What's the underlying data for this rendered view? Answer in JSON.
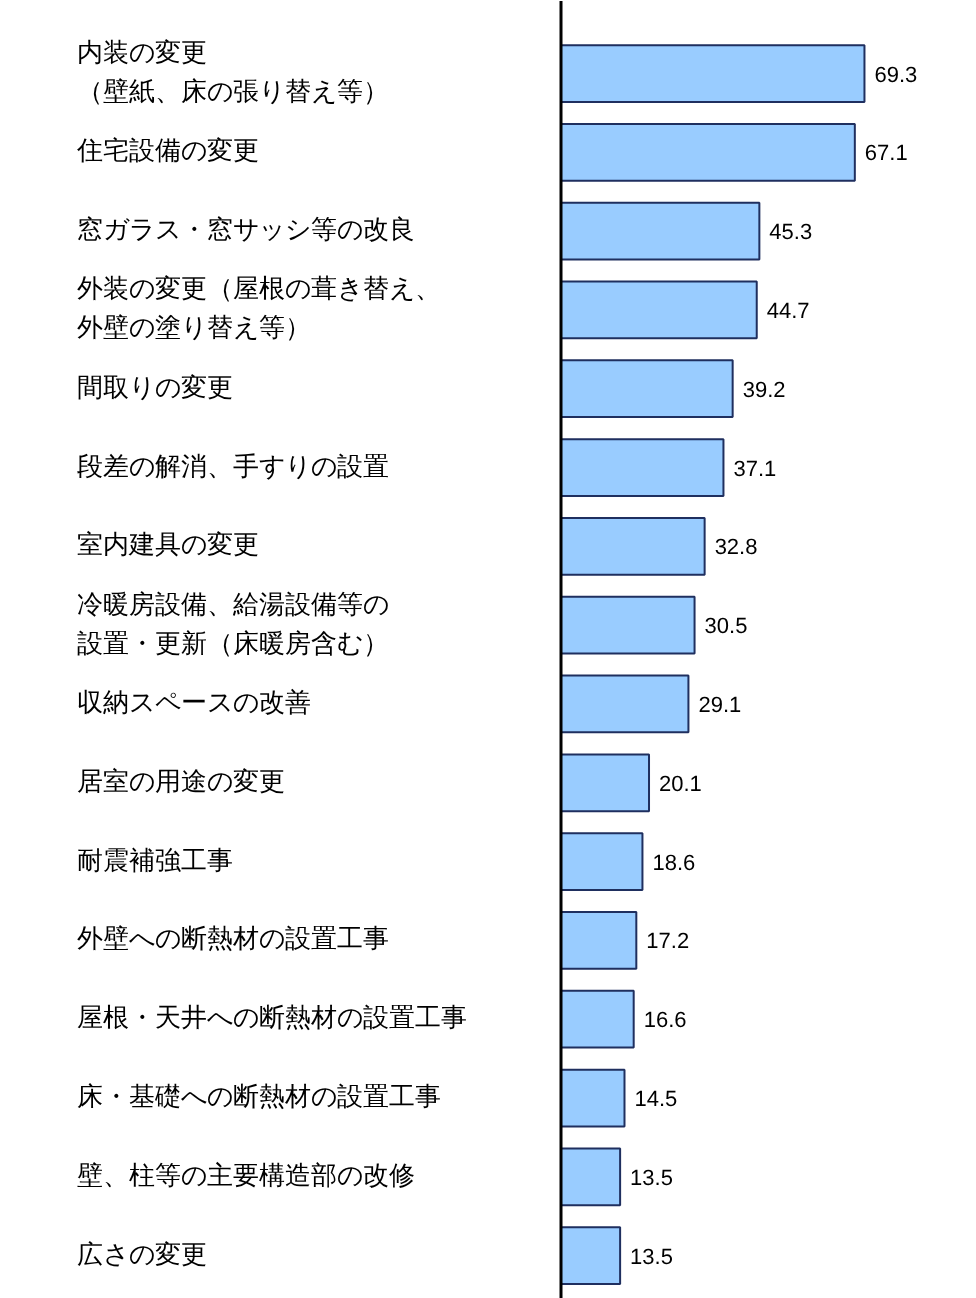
{
  "chart_data": {
    "type": "bar",
    "orientation": "horizontal",
    "xlim": [
      0,
      95
    ],
    "data_labels": true,
    "color": "#99ccff",
    "categories": [
      "内装の変更（壁紙、床の張り替え等）",
      "住宅設備の変更",
      "窓ガラス・窓サッシ等の改良",
      "外装の変更（屋根の葺き替え、外壁の塗り替え等）",
      "間取りの変更",
      "段差の解消、手すりの設置",
      "室内建具の変更",
      "冷暖房設備、給湯設備等の設置・更新（床暖房含む）",
      "収納スペースの改善",
      "居室の用途の変更",
      "耐震補強工事",
      "外壁への断熱材の設置工事",
      "屋根・天井への断熱材の設置工事",
      "床・基礎への断熱材の設置工事",
      "壁、柱等の主要構造部の改修",
      "広さの変更"
    ],
    "values": [
      69.3,
      67.1,
      45.3,
      44.7,
      39.2,
      37.1,
      32.8,
      30.5,
      29.1,
      20.1,
      18.6,
      17.2,
      16.6,
      14.5,
      13.5,
      13.5
    ]
  }
}
